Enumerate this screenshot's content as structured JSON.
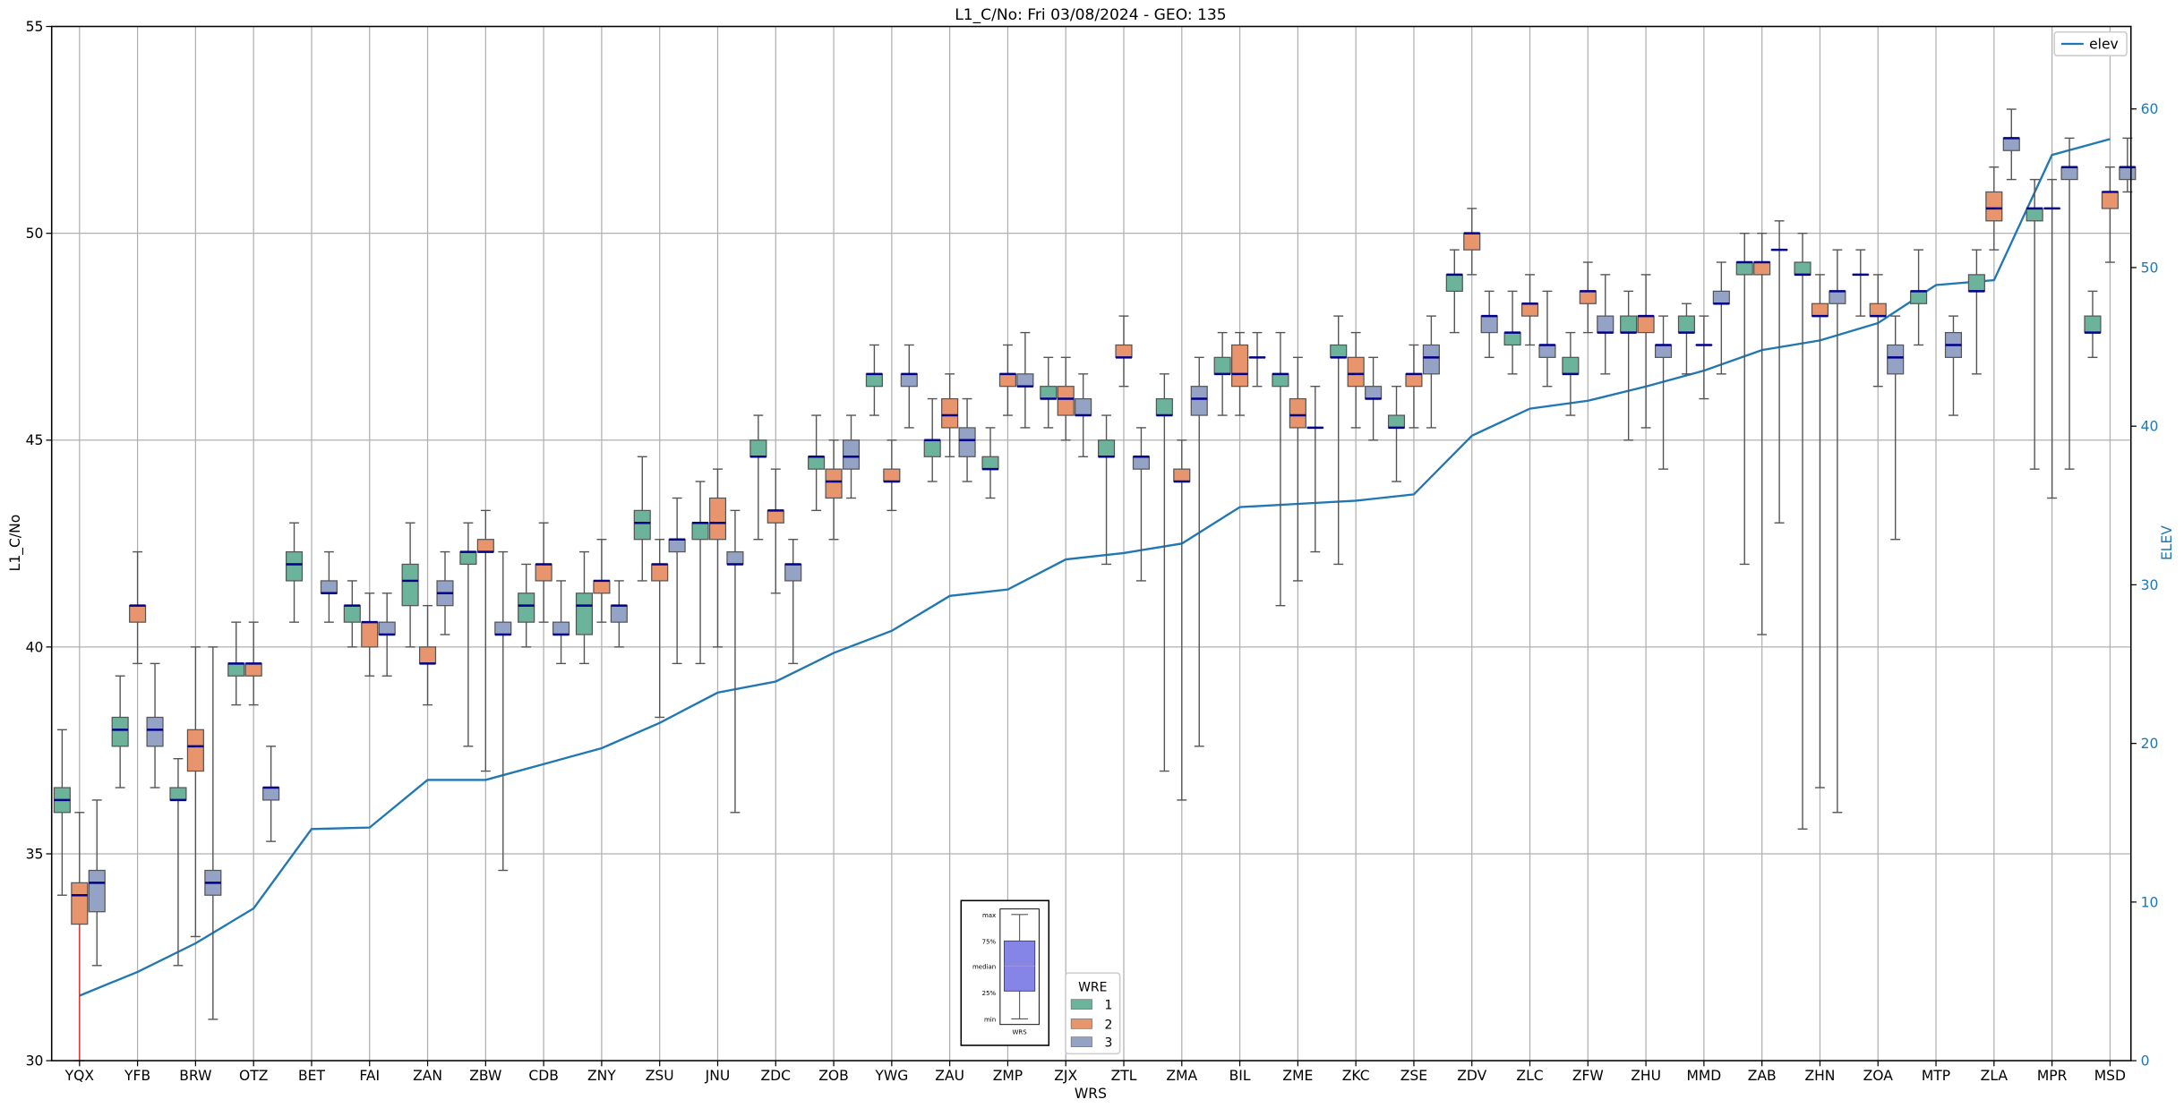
{
  "chart_data": {
    "type": "box",
    "title": "L1_C/No: Fri 03/08/2024 - GEO: 135",
    "xlabel": "WRS",
    "ylabel": "L1_C/No",
    "y2label": "ELEV",
    "ylim": [
      30,
      55
    ],
    "y_ticks": [
      30,
      35,
      40,
      45,
      50,
      55
    ],
    "y2lim": [
      0,
      65.2
    ],
    "y2_ticks": [
      0,
      10,
      20,
      30,
      40,
      50,
      60
    ],
    "grid": true,
    "colors": {
      "1": "#6cb39c",
      "2": "#e8956e",
      "3": "#94a3c5",
      "median": "#00008b",
      "whisker": "#555555",
      "elev": "#1f77b4",
      "outlier_whisker": "#d62728"
    },
    "box_stats_order": [
      "min",
      "q1",
      "median",
      "q3",
      "max"
    ],
    "groups": [
      {
        "wrs": "YQX",
        "boxes": {
          "1": [
            34.0,
            36.0,
            36.3,
            36.6,
            38.0
          ],
          "2": [
            30.0,
            33.3,
            34.0,
            34.3,
            36.0
          ],
          "3": [
            32.3,
            33.6,
            34.3,
            34.6,
            36.3
          ]
        },
        "red_low_whisker": "2"
      },
      {
        "wrs": "YFB",
        "boxes": {
          "1": [
            36.6,
            37.6,
            38.0,
            38.3,
            39.3
          ],
          "2": [
            39.6,
            40.6,
            41.0,
            41.0,
            42.3
          ],
          "3": [
            36.6,
            37.6,
            38.0,
            38.3,
            39.6
          ]
        }
      },
      {
        "wrs": "BRW",
        "boxes": {
          "1": [
            32.3,
            36.3,
            36.3,
            36.6,
            37.3
          ],
          "2": [
            33.0,
            37.0,
            37.6,
            38.0,
            40.0
          ],
          "3": [
            31.0,
            34.0,
            34.3,
            34.6,
            40.0
          ]
        }
      },
      {
        "wrs": "OTZ",
        "boxes": {
          "1": [
            38.6,
            39.3,
            39.6,
            39.6,
            40.6
          ],
          "2": [
            38.6,
            39.3,
            39.6,
            39.6,
            40.6
          ],
          "3": [
            35.3,
            36.3,
            36.6,
            36.6,
            37.6
          ]
        }
      },
      {
        "wrs": "BET",
        "boxes": {
          "1": [
            40.6,
            41.6,
            42.0,
            42.3,
            43.0
          ],
          "3": [
            40.6,
            41.3,
            41.3,
            41.6,
            42.3
          ]
        }
      },
      {
        "wrs": "FAI",
        "boxes": {
          "1": [
            40.0,
            40.6,
            41.0,
            41.0,
            41.6
          ],
          "2": [
            39.3,
            40.0,
            40.6,
            40.6,
            41.3
          ],
          "3": [
            39.3,
            40.3,
            40.3,
            40.6,
            41.3
          ]
        }
      },
      {
        "wrs": "ZAN",
        "boxes": {
          "1": [
            40.0,
            41.0,
            41.6,
            42.0,
            43.0
          ],
          "2": [
            38.6,
            39.6,
            39.6,
            40.0,
            41.0
          ],
          "3": [
            40.3,
            41.0,
            41.3,
            41.6,
            42.3
          ]
        }
      },
      {
        "wrs": "ZBW",
        "boxes": {
          "1": [
            37.6,
            42.0,
            42.3,
            42.3,
            43.0
          ],
          "2": [
            37.0,
            42.3,
            42.3,
            42.6,
            43.3
          ],
          "3": [
            34.6,
            40.3,
            40.3,
            40.6,
            42.3
          ]
        }
      },
      {
        "wrs": "CDB",
        "boxes": {
          "1": [
            40.0,
            40.6,
            41.0,
            41.3,
            42.0
          ],
          "2": [
            40.6,
            41.6,
            42.0,
            42.0,
            43.0
          ],
          "3": [
            39.6,
            40.3,
            40.3,
            40.6,
            41.6
          ]
        }
      },
      {
        "wrs": "ZNY",
        "boxes": {
          "1": [
            39.6,
            40.3,
            41.0,
            41.3,
            42.3
          ],
          "2": [
            40.6,
            41.3,
            41.6,
            41.6,
            42.6
          ],
          "3": [
            40.0,
            40.6,
            41.0,
            41.0,
            41.6
          ]
        }
      },
      {
        "wrs": "ZSU",
        "boxes": {
          "1": [
            41.6,
            42.6,
            43.0,
            43.3,
            44.6
          ],
          "2": [
            38.3,
            41.6,
            42.0,
            42.0,
            42.6
          ],
          "3": [
            39.6,
            42.3,
            42.6,
            42.6,
            43.6
          ]
        }
      },
      {
        "wrs": "JNU",
        "boxes": {
          "1": [
            39.6,
            42.6,
            43.0,
            43.0,
            44.0
          ],
          "2": [
            40.0,
            42.6,
            43.0,
            43.6,
            44.3
          ],
          "3": [
            36.0,
            42.0,
            42.0,
            42.3,
            43.3
          ]
        }
      },
      {
        "wrs": "ZDC",
        "boxes": {
          "1": [
            42.6,
            44.6,
            44.6,
            45.0,
            45.6
          ],
          "2": [
            41.3,
            43.0,
            43.3,
            43.3,
            44.3
          ],
          "3": [
            39.6,
            41.6,
            42.0,
            42.0,
            42.6
          ]
        }
      },
      {
        "wrs": "ZOB",
        "boxes": {
          "1": [
            43.3,
            44.3,
            44.6,
            44.6,
            45.6
          ],
          "2": [
            42.6,
            43.6,
            44.0,
            44.3,
            45.0
          ],
          "3": [
            43.6,
            44.3,
            44.6,
            45.0,
            45.6
          ]
        }
      },
      {
        "wrs": "YWG",
        "boxes": {
          "1": [
            45.6,
            46.3,
            46.6,
            46.6,
            47.3
          ],
          "2": [
            43.3,
            44.0,
            44.0,
            44.3,
            45.0
          ],
          "3": [
            45.3,
            46.3,
            46.6,
            46.6,
            47.3
          ]
        }
      },
      {
        "wrs": "ZAU",
        "boxes": {
          "1": [
            44.0,
            44.6,
            45.0,
            45.0,
            46.0
          ],
          "2": [
            44.6,
            45.3,
            45.6,
            46.0,
            46.6
          ],
          "3": [
            44.0,
            44.6,
            45.0,
            45.3,
            46.0
          ]
        }
      },
      {
        "wrs": "ZMP",
        "boxes": {
          "1": [
            43.6,
            44.3,
            44.3,
            44.6,
            45.3
          ],
          "2": [
            45.6,
            46.3,
            46.6,
            46.6,
            47.3
          ],
          "3": [
            45.3,
            46.3,
            46.3,
            46.6,
            47.6
          ]
        }
      },
      {
        "wrs": "ZJX",
        "boxes": {
          "1": [
            45.3,
            46.0,
            46.0,
            46.3,
            47.0
          ],
          "2": [
            45.0,
            45.6,
            46.0,
            46.3,
            47.0
          ],
          "3": [
            44.6,
            45.6,
            45.6,
            46.0,
            46.6
          ]
        }
      },
      {
        "wrs": "ZTL",
        "boxes": {
          "1": [
            42.0,
            44.6,
            44.6,
            45.0,
            45.6
          ],
          "2": [
            46.3,
            47.0,
            47.0,
            47.3,
            48.0
          ],
          "3": [
            41.6,
            44.3,
            44.6,
            44.6,
            45.3
          ]
        }
      },
      {
        "wrs": "ZMA",
        "boxes": {
          "1": [
            37.0,
            45.6,
            45.6,
            46.0,
            46.6
          ],
          "2": [
            36.3,
            44.0,
            44.0,
            44.3,
            45.0
          ],
          "3": [
            37.6,
            45.6,
            46.0,
            46.3,
            47.0
          ]
        }
      },
      {
        "wrs": "BIL",
        "boxes": {
          "1": [
            45.6,
            46.6,
            46.6,
            47.0,
            47.6
          ],
          "2": [
            45.6,
            46.3,
            46.6,
            47.3,
            47.6
          ],
          "3": [
            46.3,
            47.0,
            47.0,
            47.0,
            47.6
          ]
        }
      },
      {
        "wrs": "ZME",
        "boxes": {
          "1": [
            41.0,
            46.3,
            46.6,
            46.6,
            47.6
          ],
          "2": [
            41.6,
            45.3,
            45.6,
            46.0,
            47.0
          ],
          "3": [
            42.3,
            45.3,
            45.3,
            45.3,
            46.3
          ]
        }
      },
      {
        "wrs": "ZKC",
        "boxes": {
          "1": [
            42.0,
            47.0,
            47.0,
            47.3,
            48.0
          ],
          "2": [
            45.3,
            46.3,
            46.6,
            47.0,
            47.6
          ],
          "3": [
            45.0,
            46.0,
            46.0,
            46.3,
            47.0
          ]
        }
      },
      {
        "wrs": "ZSE",
        "boxes": {
          "1": [
            44.0,
            45.3,
            45.3,
            45.6,
            46.3
          ],
          "2": [
            45.3,
            46.3,
            46.6,
            46.6,
            47.3
          ],
          "3": [
            45.3,
            46.6,
            47.0,
            47.3,
            48.0
          ]
        }
      },
      {
        "wrs": "ZDV",
        "boxes": {
          "1": [
            47.6,
            48.6,
            49.0,
            49.0,
            49.6
          ],
          "2": [
            49.0,
            49.6,
            50.0,
            50.0,
            50.6
          ],
          "3": [
            47.0,
            47.6,
            48.0,
            48.0,
            48.6
          ]
        }
      },
      {
        "wrs": "ZLC",
        "boxes": {
          "1": [
            46.6,
            47.3,
            47.6,
            47.6,
            48.6
          ],
          "2": [
            47.3,
            48.0,
            48.3,
            48.3,
            49.0
          ],
          "3": [
            46.3,
            47.0,
            47.3,
            47.3,
            48.6
          ]
        }
      },
      {
        "wrs": "ZFW",
        "boxes": {
          "1": [
            45.6,
            46.6,
            46.6,
            47.0,
            47.6
          ],
          "2": [
            47.6,
            48.3,
            48.6,
            48.6,
            49.3
          ],
          "3": [
            46.6,
            47.6,
            47.6,
            48.0,
            49.0
          ]
        }
      },
      {
        "wrs": "ZHU",
        "boxes": {
          "1": [
            45.0,
            47.6,
            47.6,
            48.0,
            48.6
          ],
          "2": [
            45.3,
            47.6,
            48.0,
            48.0,
            49.0
          ],
          "3": [
            44.3,
            47.0,
            47.3,
            47.3,
            48.0
          ]
        }
      },
      {
        "wrs": "MMD",
        "boxes": {
          "1": [
            46.6,
            47.6,
            47.6,
            48.0,
            48.3
          ],
          "2": [
            46.0,
            47.3,
            47.3,
            47.3,
            48.0
          ],
          "3": [
            46.6,
            48.3,
            48.3,
            48.6,
            49.3
          ]
        }
      },
      {
        "wrs": "ZAB",
        "boxes": {
          "1": [
            42.0,
            49.0,
            49.3,
            49.3,
            50.0
          ],
          "2": [
            40.3,
            49.0,
            49.3,
            49.3,
            50.0
          ],
          "3": [
            43.0,
            49.6,
            49.6,
            49.6,
            50.3
          ]
        }
      },
      {
        "wrs": "ZHN",
        "boxes": {
          "1": [
            35.6,
            49.0,
            49.0,
            49.3,
            50.0
          ],
          "2": [
            36.6,
            48.0,
            48.0,
            48.3,
            49.0
          ],
          "3": [
            36.0,
            48.3,
            48.6,
            48.6,
            49.6
          ]
        }
      },
      {
        "wrs": "ZOA",
        "boxes": {
          "1": [
            48.0,
            49.0,
            49.0,
            49.0,
            49.6
          ],
          "2": [
            46.3,
            48.0,
            48.0,
            48.3,
            49.0
          ],
          "3": [
            42.6,
            46.6,
            47.0,
            47.3,
            48.0
          ]
        }
      },
      {
        "wrs": "MTP",
        "boxes": {
          "1": [
            47.3,
            48.3,
            48.6,
            48.6,
            49.6
          ],
          "3": [
            45.6,
            47.0,
            47.3,
            47.6,
            48.0
          ]
        }
      },
      {
        "wrs": "ZLA",
        "boxes": {
          "1": [
            46.6,
            48.6,
            48.6,
            49.0,
            49.6
          ],
          "2": [
            49.6,
            50.3,
            50.6,
            51.0,
            51.6
          ],
          "3": [
            51.3,
            52.0,
            52.3,
            52.3,
            53.0
          ]
        }
      },
      {
        "wrs": "MPR",
        "boxes": {
          "1": [
            44.3,
            50.3,
            50.6,
            50.6,
            51.3
          ],
          "2": [
            43.6,
            50.6,
            50.6,
            50.6,
            51.3
          ],
          "3": [
            44.3,
            51.3,
            51.6,
            51.6,
            52.3
          ]
        }
      },
      {
        "wrs": "MSD",
        "boxes": {
          "1": [
            47.0,
            47.6,
            47.6,
            48.0,
            48.6
          ],
          "2": [
            49.3,
            50.6,
            51.0,
            51.0,
            51.6
          ],
          "3": [
            51.0,
            51.3,
            51.6,
            51.6,
            52.3
          ]
        }
      }
    ],
    "elev": {
      "name": "elev",
      "values": [
        4.1,
        5.6,
        7.4,
        9.6,
        14.6,
        14.7,
        17.7,
        17.7,
        18.7,
        19.7,
        21.3,
        23.2,
        23.9,
        25.7,
        27.1,
        29.3,
        29.7,
        31.6,
        32.0,
        32.6,
        34.9,
        35.1,
        35.3,
        35.7,
        39.4,
        41.1,
        41.6,
        42.5,
        43.5,
        44.8,
        45.4,
        46.5,
        48.9,
        49.2,
        57.1,
        58.1
      ]
    },
    "legend_elev": {
      "label": "elev",
      "placement": "top-right"
    },
    "legend_wre": {
      "title": "WRE",
      "entries": [
        "1",
        "2",
        "3"
      ],
      "placement": "bottom-center"
    },
    "inset": {
      "labels": [
        "max",
        "75%",
        "median",
        "25%",
        "min"
      ],
      "xlabel": "WRS"
    }
  }
}
